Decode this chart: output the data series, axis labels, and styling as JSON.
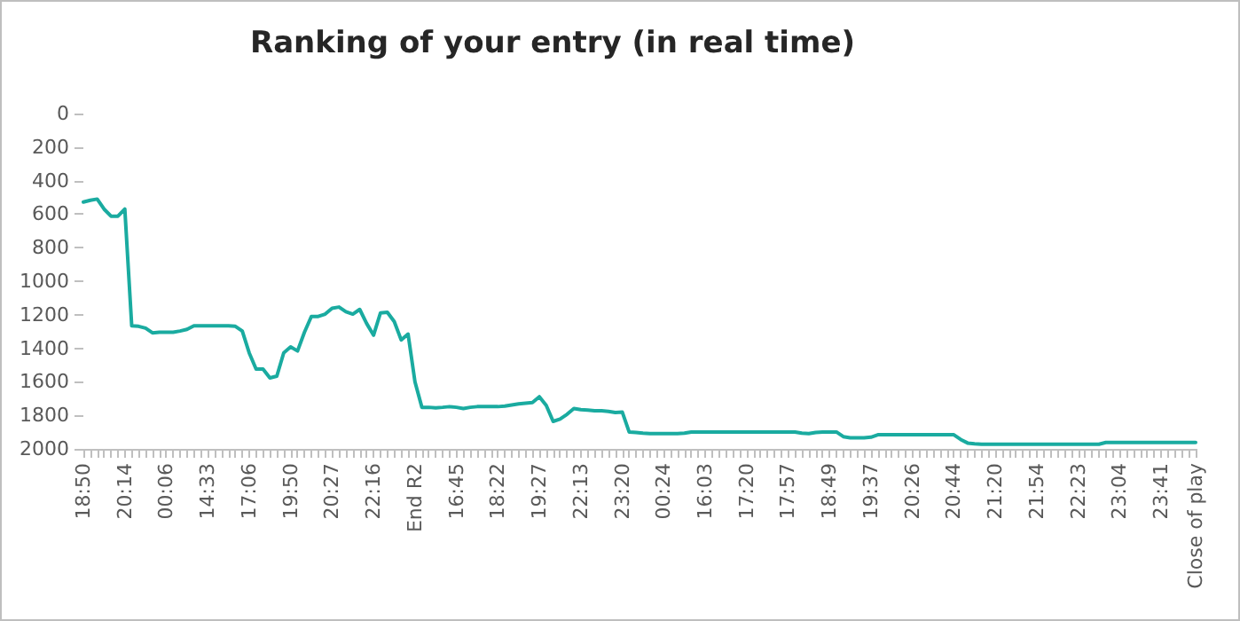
{
  "chart_data": {
    "type": "line",
    "title": "Ranking of your entry (in real time)",
    "categories": [
      "18:50",
      null,
      null,
      null,
      null,
      null,
      "20:14",
      null,
      null,
      null,
      null,
      null,
      "00:06",
      null,
      null,
      null,
      null,
      null,
      "14:33",
      null,
      null,
      null,
      null,
      null,
      "17:06",
      null,
      null,
      null,
      null,
      null,
      "19:50",
      null,
      null,
      null,
      null,
      null,
      "20:27",
      null,
      null,
      null,
      null,
      null,
      "22:16",
      null,
      null,
      null,
      null,
      null,
      "End R2",
      null,
      null,
      null,
      null,
      null,
      "16:45",
      null,
      null,
      null,
      null,
      null,
      "18:22",
      null,
      null,
      null,
      null,
      null,
      "19:27",
      null,
      null,
      null,
      null,
      null,
      "22:13",
      null,
      null,
      null,
      null,
      null,
      "23:20",
      null,
      null,
      null,
      null,
      null,
      "00:24",
      null,
      null,
      null,
      null,
      null,
      "16:03",
      null,
      null,
      null,
      null,
      null,
      "17:20",
      null,
      null,
      null,
      null,
      null,
      "17:57",
      null,
      null,
      null,
      null,
      null,
      "18:49",
      null,
      null,
      null,
      null,
      null,
      "19:37",
      null,
      null,
      null,
      null,
      null,
      "20:26",
      null,
      null,
      null,
      null,
      null,
      "20:44",
      null,
      null,
      null,
      null,
      null,
      "21:20",
      null,
      null,
      null,
      null,
      null,
      "21:54",
      null,
      null,
      null,
      null,
      null,
      "22:23",
      null,
      null,
      null,
      null,
      null,
      "23:04",
      null,
      null,
      null,
      null,
      null,
      "23:41",
      null,
      null,
      null,
      null,
      "Close of play"
    ],
    "series": [
      {
        "color": "#1aaba0",
        "values": [
          528,
          517,
          510,
          570,
          612,
          612,
          570,
          1266,
          1269,
          1280,
          1308,
          1304,
          1304,
          1304,
          1297,
          1287,
          1266,
          1266,
          1266,
          1266,
          1266,
          1266,
          1269,
          1297,
          1427,
          1524,
          1524,
          1577,
          1566,
          1427,
          1392,
          1416,
          1304,
          1210,
          1210,
          1196,
          1161,
          1154,
          1182,
          1196,
          1168,
          1252,
          1322,
          1189,
          1185,
          1241,
          1350,
          1315,
          1601,
          1752,
          1752,
          1755,
          1752,
          1748,
          1752,
          1759,
          1752,
          1748,
          1748,
          1748,
          1748,
          1745,
          1738,
          1731,
          1727,
          1724,
          1689,
          1741,
          1836,
          1822,
          1794,
          1759,
          1766,
          1769,
          1773,
          1773,
          1776,
          1783,
          1780,
          1899,
          1902,
          1906,
          1909,
          1909,
          1909,
          1909,
          1909,
          1906,
          1899,
          1899,
          1899,
          1899,
          1899,
          1899,
          1899,
          1899,
          1899,
          1899,
          1899,
          1899,
          1899,
          1899,
          1899,
          1899,
          1906,
          1909,
          1902,
          1899,
          1899,
          1899,
          1927,
          1934,
          1934,
          1934,
          1930,
          1916,
          1916,
          1916,
          1916,
          1916,
          1916,
          1916,
          1916,
          1916,
          1916,
          1916,
          1916,
          1944,
          1965,
          1969,
          1972,
          1972,
          1972,
          1972,
          1972,
          1972,
          1972,
          1972,
          1972,
          1972,
          1972,
          1972,
          1972,
          1972,
          1972,
          1972,
          1972,
          1972,
          1962,
          1962,
          1962,
          1962,
          1962,
          1962,
          1962,
          1962,
          1962,
          1962,
          1962,
          1962,
          1962,
          1962
        ]
      }
    ],
    "ylim": [
      2000,
      0
    ],
    "yticks": [
      0,
      200,
      400,
      600,
      800,
      1000,
      1200,
      1400,
      1600,
      1800,
      2000
    ],
    "grid": false,
    "marker": "none",
    "line_style": "solid"
  }
}
